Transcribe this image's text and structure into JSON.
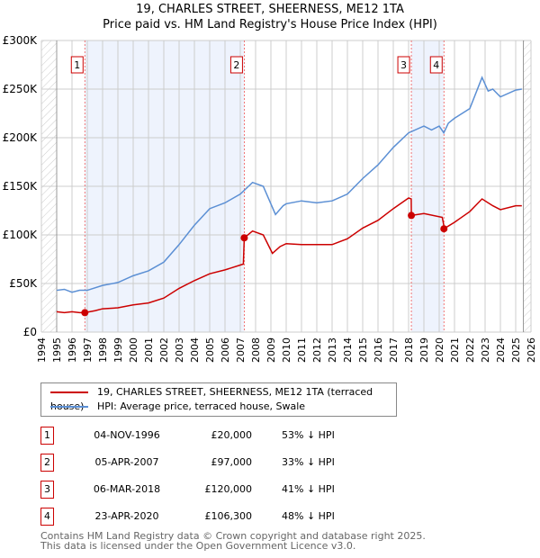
{
  "chart_data": {
    "type": "line",
    "title": "19, CHARLES STREET, SHEERNESS, ME12 1TA",
    "subtitle": "Price paid vs. HM Land Registry's House Price Index (HPI)",
    "xlim": [
      1994,
      2026
    ],
    "ylim": [
      0,
      300000
    ],
    "x_ticks": [
      "1994",
      "1995",
      "1996",
      "1997",
      "1998",
      "1999",
      "2000",
      "2001",
      "2002",
      "2003",
      "2004",
      "2005",
      "2006",
      "2007",
      "2008",
      "2009",
      "2010",
      "2011",
      "2012",
      "2013",
      "2014",
      "2015",
      "2016",
      "2017",
      "2018",
      "2019",
      "2020",
      "2021",
      "2022",
      "2023",
      "2024",
      "2025",
      "2026"
    ],
    "y_ticks": [
      {
        "v": 0,
        "label": "£0"
      },
      {
        "v": 50000,
        "label": "£50K"
      },
      {
        "v": 100000,
        "label": "£100K"
      },
      {
        "v": 150000,
        "label": "£150K"
      },
      {
        "v": 200000,
        "label": "£200K"
      },
      {
        "v": 250000,
        "label": "£250K"
      },
      {
        "v": 300000,
        "label": "£300K"
      }
    ],
    "grid": true,
    "series": [
      {
        "name": "19, CHARLES STREET, SHEERNESS, ME12 1TA (terraced house)",
        "color": "#cc0000",
        "x": [
          1995,
          1995.5,
          1996,
          1996.5,
          1996.84,
          1997.5,
          1998,
          1999,
          2000,
          2001,
          2002,
          2003,
          2004,
          2005,
          2006,
          2007.2,
          2007.26,
          2007.8,
          2008.5,
          2009.1,
          2009.6,
          2010,
          2011,
          2012,
          2013,
          2014,
          2015,
          2016,
          2017,
          2018.0,
          2018.17,
          2018.18,
          2019,
          2020.2,
          2020.3,
          2020.31,
          2021,
          2022,
          2022.8,
          2023.5,
          2024,
          2025,
          2025.4
        ],
        "y": [
          21000,
          20000,
          21000,
          20000,
          20000,
          22000,
          24000,
          25000,
          28000,
          30000,
          35000,
          45000,
          53000,
          60000,
          64000,
          70000,
          97000,
          104000,
          100000,
          81000,
          88000,
          91000,
          90000,
          90000,
          90000,
          96000,
          107000,
          115000,
          127000,
          138000,
          137000,
          120000,
          122000,
          118000,
          110000,
          106300,
          113000,
          124000,
          137000,
          130000,
          126000,
          130000,
          130000
        ]
      },
      {
        "name": "HPI: Average price, terraced house, Swale",
        "color": "#5b8fd4",
        "x": [
          1995,
          1995.5,
          1996,
          1996.5,
          1997,
          1998,
          1999,
          2000,
          2001,
          2002,
          2003,
          2004,
          2005,
          2006,
          2007,
          2007.8,
          2008.5,
          2009.3,
          2009.8,
          2010,
          2011,
          2012,
          2013,
          2014,
          2015,
          2016,
          2017,
          2018,
          2019,
          2019.5,
          2020,
          2020.3,
          2020.6,
          2021,
          2022,
          2022.8,
          2023.2,
          2023.5,
          2024,
          2025,
          2025.4
        ],
        "y": [
          43000,
          44000,
          41000,
          43000,
          43000,
          48000,
          51000,
          58000,
          63000,
          72000,
          90000,
          110000,
          127000,
          133000,
          142000,
          154000,
          150000,
          121000,
          130000,
          132000,
          135000,
          133000,
          135000,
          142000,
          158000,
          172000,
          190000,
          205000,
          212000,
          208000,
          212000,
          205000,
          215000,
          220000,
          230000,
          262000,
          248000,
          250000,
          242000,
          249000,
          250000
        ]
      }
    ],
    "sales": [
      {
        "n": "1",
        "x": 1996.84,
        "price": 20000
      },
      {
        "n": "2",
        "x": 2007.26,
        "price": 97000
      },
      {
        "n": "3",
        "x": 2018.18,
        "price": 120000
      },
      {
        "n": "4",
        "x": 2020.31,
        "price": 106300
      }
    ],
    "shaded_bands": [
      [
        1996.84,
        2007.26
      ],
      [
        2018.18,
        2020.31
      ]
    ],
    "hatched_before": 1995,
    "hatched_after": 2025.5,
    "legend": [
      "19, CHARLES STREET, SHEERNESS, ME12 1TA (terraced house)",
      "HPI: Average price, terraced house, Swale"
    ],
    "legend_placement": "below"
  },
  "table": [
    {
      "n": "1",
      "date": "04-NOV-1996",
      "price": "£20,000",
      "hpi": "53% ↓ HPI"
    },
    {
      "n": "2",
      "date": "05-APR-2007",
      "price": "£97,000",
      "hpi": "33% ↓ HPI"
    },
    {
      "n": "3",
      "date": "06-MAR-2018",
      "price": "£120,000",
      "hpi": "41% ↓ HPI"
    },
    {
      "n": "4",
      "date": "23-APR-2020",
      "price": "£106,300",
      "hpi": "48% ↓ HPI"
    }
  ],
  "footer": [
    "Contains HM Land Registry data © Crown copyright and database right 2025.",
    "This data is licensed under the Open Government Licence v3.0."
  ]
}
